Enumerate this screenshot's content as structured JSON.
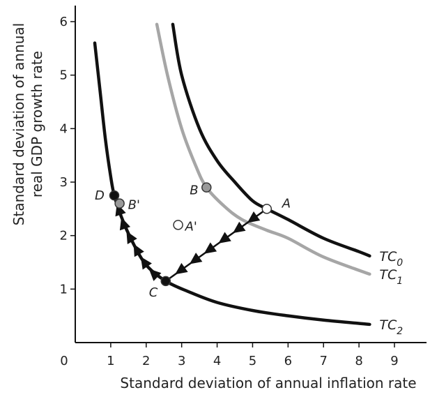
{
  "chart_data": {
    "type": "line",
    "title": "",
    "xlabel": "Standard deviation of annual inflation rate",
    "ylabel_lines": [
      "Standard deviation of annual",
      "real GDP growth rate"
    ],
    "xlim": [
      0,
      9
    ],
    "ylim": [
      0,
      6
    ],
    "x_ticks": [
      0,
      1,
      2,
      3,
      4,
      5,
      6,
      7,
      8,
      9
    ],
    "y_ticks": [
      1,
      2,
      3,
      4,
      5,
      6
    ],
    "grid": false,
    "series": [
      {
        "name": "TC0",
        "label_main": "TC",
        "label_sub": "0",
        "color": "#111111",
        "x": [
          2.75,
          3.0,
          3.5,
          4.0,
          4.5,
          5.0,
          5.4,
          6.0,
          7.0,
          8.0,
          8.3
        ],
        "y": [
          5.95,
          5.0,
          4.0,
          3.4,
          3.0,
          2.65,
          2.5,
          2.3,
          1.95,
          1.7,
          1.62
        ]
      },
      {
        "name": "TC1",
        "label_main": "TC",
        "label_sub": "1",
        "color": "#a6a6a6",
        "x": [
          2.3,
          2.6,
          3.0,
          3.4,
          3.7,
          4.2,
          4.7,
          5.4,
          6.0,
          7.0,
          8.3
        ],
        "y": [
          5.95,
          5.0,
          4.0,
          3.3,
          2.9,
          2.55,
          2.3,
          2.1,
          1.95,
          1.6,
          1.28
        ]
      },
      {
        "name": "TC2",
        "label_main": "TC",
        "label_sub": "2",
        "color": "#111111",
        "x": [
          0.55,
          0.7,
          0.85,
          1.0,
          1.1,
          1.3,
          1.6,
          2.0,
          2.55,
          3.2,
          4.0,
          5.0,
          6.0,
          7.0,
          8.3
        ],
        "y": [
          5.6,
          4.7,
          3.8,
          3.1,
          2.75,
          2.35,
          1.9,
          1.45,
          1.15,
          0.95,
          0.75,
          0.6,
          0.5,
          0.42,
          0.34
        ]
      }
    ],
    "points": [
      {
        "label": "A",
        "x": 5.4,
        "y": 2.5,
        "fill": "#ffffff"
      },
      {
        "label": "B",
        "x": 3.7,
        "y": 2.9,
        "fill": "#999999"
      },
      {
        "label": "A'",
        "x": 2.9,
        "y": 2.2,
        "fill": "#ffffff"
      },
      {
        "label": "B'",
        "x": 1.25,
        "y": 2.6,
        "fill": "#999999"
      },
      {
        "label": "C",
        "x": 2.55,
        "y": 1.15,
        "fill": "#111111"
      },
      {
        "label": "D",
        "x": 1.1,
        "y": 2.75,
        "fill": "#111111"
      }
    ],
    "paths": [
      {
        "description": "A to C",
        "x": [
          5.4,
          2.55
        ],
        "y": [
          2.5,
          1.15
        ]
      },
      {
        "description": "C to D along TC2",
        "x": [
          2.55,
          2.2,
          1.9,
          1.6,
          1.4,
          1.25,
          1.1
        ],
        "y": [
          1.15,
          1.3,
          1.55,
          1.9,
          2.15,
          2.45,
          2.75
        ]
      }
    ]
  }
}
